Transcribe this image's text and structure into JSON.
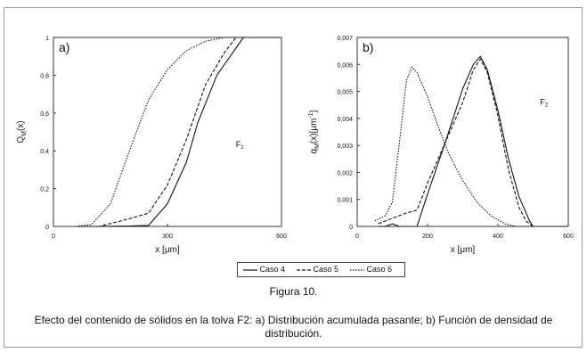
{
  "figure": {
    "number": "Figura 10.",
    "caption": "Efecto del contenido de sólidos en la tolva F2: a) Distribución acumulada pasante; b) Función de densidad de distribución."
  },
  "legend": [
    {
      "label": "Caso 4",
      "dash": "solid"
    },
    {
      "label": "Caso 5",
      "dash": "dashed"
    },
    {
      "label": "Caso 6",
      "dash": "dotted"
    }
  ],
  "chart_data": [
    {
      "type": "line",
      "panel_label": "a)",
      "annotation": "F",
      "annotation_sub": "2",
      "xlabel": "x [μm]",
      "ylabel": "Q",
      "ylabel_sub": "M",
      "ylabel_suffix": "(x)",
      "xlim": [
        0,
        600
      ],
      "ylim": [
        0,
        1
      ],
      "xticks": [
        "0",
        "300",
        "600"
      ],
      "xticks_values": [
        0,
        300,
        600
      ],
      "yticks": [
        "0",
        "0,2",
        "0,4",
        "0,6",
        "0,8",
        "1"
      ],
      "yticks_values": [
        0,
        0.2,
        0.4,
        0.6,
        0.8,
        1
      ],
      "grid": false,
      "series": [
        {
          "name": "Caso 4",
          "dash": "solid",
          "x": [
            60,
            100,
            200,
            250,
            300,
            350,
            380,
            430,
            500,
            600
          ],
          "y": [
            0,
            0,
            0.002,
            0.005,
            0.12,
            0.34,
            0.55,
            0.8,
            1,
            1
          ]
        },
        {
          "name": "Caso 5",
          "dash": "dashed",
          "x": [
            60,
            120,
            180,
            250,
            300,
            350,
            400,
            450,
            480,
            600
          ],
          "y": [
            0,
            0,
            0.03,
            0.07,
            0.22,
            0.46,
            0.75,
            0.92,
            1,
            1
          ]
        },
        {
          "name": "Caso 6",
          "dash": "dotted",
          "x": [
            60,
            100,
            150,
            200,
            250,
            300,
            350,
            400,
            450,
            500,
            600
          ],
          "y": [
            0,
            0.01,
            0.12,
            0.4,
            0.67,
            0.83,
            0.93,
            0.98,
            1,
            1,
            1
          ]
        }
      ]
    },
    {
      "type": "line",
      "panel_label": "b)",
      "annotation": "F",
      "annotation_sub": "2",
      "xlabel": "x [μm]",
      "ylabel": "q",
      "ylabel_sub": "M",
      "ylabel_suffix": "(x)[μm",
      "ylabel_sup": "-1",
      "ylabel_end": "]",
      "xlim": [
        0,
        600
      ],
      "ylim": [
        0,
        0.007
      ],
      "xticks": [
        "0",
        "200",
        "400",
        "600"
      ],
      "xticks_values": [
        0,
        200,
        400,
        600
      ],
      "yticks": [
        "0",
        "0,001",
        "0,002",
        "0,003",
        "0,004",
        "0,005",
        "0,006",
        "0,007"
      ],
      "yticks_values": [
        0,
        0.001,
        0.002,
        0.003,
        0.004,
        0.005,
        0.006,
        0.007
      ],
      "grid": false,
      "series": [
        {
          "name": "Caso 4",
          "dash": "solid",
          "x": [
            60,
            80,
            100,
            120,
            140,
            170,
            200,
            250,
            300,
            330,
            350,
            370,
            400,
            430,
            460,
            490,
            500,
            600
          ],
          "y": [
            0,
            0,
            0.0001,
            0,
            0,
            0,
            0.0012,
            0.0031,
            0.0051,
            0.006,
            0.0063,
            0.0058,
            0.0043,
            0.0025,
            0.0011,
            0.0002,
            0,
            0
          ]
        },
        {
          "name": "Caso 5",
          "dash": "dashed",
          "x": [
            60,
            80,
            100,
            120,
            140,
            170,
            200,
            250,
            300,
            330,
            350,
            370,
            400,
            430,
            460,
            480,
            500,
            600
          ],
          "y": [
            0.0001,
            0.0002,
            0.0003,
            0.0004,
            0.0005,
            0.0006,
            0.0016,
            0.0031,
            0.0046,
            0.0058,
            0.0062,
            0.0057,
            0.0041,
            0.0021,
            0.0007,
            0.0002,
            0,
            0
          ]
        },
        {
          "name": "Caso 6",
          "dash": "dotted",
          "x": [
            50,
            80,
            100,
            120,
            140,
            155,
            170,
            200,
            230,
            260,
            300,
            340,
            380,
            420,
            450,
            600
          ],
          "y": [
            0.0002,
            0.0004,
            0.0009,
            0.0031,
            0.0054,
            0.0059,
            0.0057,
            0.0048,
            0.0037,
            0.0027,
            0.0017,
            0.0009,
            0.0004,
            0.0001,
            0,
            0
          ]
        }
      ]
    }
  ]
}
